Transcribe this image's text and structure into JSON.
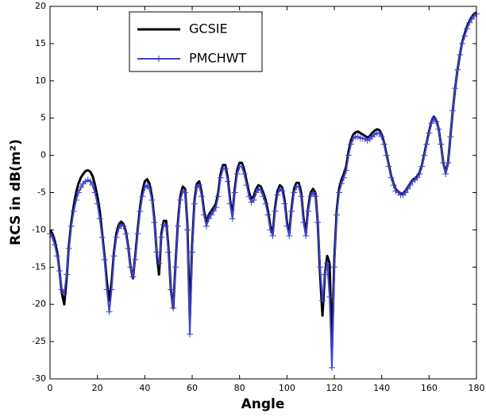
{
  "chart_data": {
    "type": "line",
    "x_label": "Angle",
    "y_label": "RCS in dB(m²)",
    "x": [
      0,
      1,
      2,
      3,
      4,
      5,
      6,
      7,
      8,
      9,
      10,
      11,
      12,
      13,
      14,
      15,
      16,
      17,
      18,
      19,
      20,
      21,
      22,
      23,
      24,
      25,
      26,
      27,
      28,
      29,
      30,
      31,
      32,
      33,
      34,
      35,
      36,
      37,
      38,
      39,
      40,
      41,
      42,
      43,
      44,
      45,
      46,
      47,
      48,
      49,
      50,
      51,
      52,
      53,
      54,
      55,
      56,
      57,
      58,
      59,
      60,
      61,
      62,
      63,
      64,
      65,
      66,
      67,
      68,
      69,
      70,
      71,
      72,
      73,
      74,
      75,
      76,
      77,
      78,
      79,
      80,
      81,
      82,
      83,
      84,
      85,
      86,
      87,
      88,
      89,
      90,
      91,
      92,
      93,
      94,
      95,
      96,
      97,
      98,
      99,
      100,
      101,
      102,
      103,
      104,
      105,
      106,
      107,
      108,
      109,
      110,
      111,
      112,
      113,
      114,
      115,
      116,
      117,
      118,
      119,
      120,
      121,
      122,
      123,
      124,
      125,
      126,
      127,
      128,
      129,
      130,
      131,
      132,
      133,
      134,
      135,
      136,
      137,
      138,
      139,
      140,
      141,
      142,
      143,
      144,
      145,
      146,
      147,
      148,
      149,
      150,
      151,
      152,
      153,
      154,
      155,
      156,
      157,
      158,
      159,
      160,
      161,
      162,
      163,
      164,
      165,
      166,
      167,
      168,
      169,
      170,
      171,
      172,
      173,
      174,
      175,
      176,
      177,
      178,
      179,
      180
    ],
    "series": [
      {
        "name": "GCSIE",
        "color": "#000000",
        "marker": "none",
        "values": [
          -10,
          -10.5,
          -11.5,
          -13,
          -15.5,
          -18.5,
          -20,
          -16.5,
          -12,
          -9,
          -6.8,
          -5,
          -3.8,
          -3,
          -2.5,
          -2.1,
          -2,
          -2.2,
          -2.8,
          -4,
          -5.5,
          -7.5,
          -10.5,
          -13.5,
          -17,
          -19.5,
          -17,
          -13,
          -10.5,
          -9.3,
          -8.9,
          -9.2,
          -10.2,
          -12.3,
          -15,
          -16.5,
          -13.5,
          -10,
          -7,
          -4.8,
          -3.5,
          -3.2,
          -3.8,
          -5.5,
          -8.5,
          -13,
          -16,
          -10.5,
          -8.8,
          -8.8,
          -12.5,
          -18,
          -20.5,
          -14.5,
          -9,
          -5.5,
          -4.2,
          -4.5,
          -9.5,
          -22,
          -12,
          -6,
          -3.8,
          -3.5,
          -5,
          -7.5,
          -9,
          -8,
          -7.5,
          -7,
          -6.5,
          -5,
          -2.5,
          -1.3,
          -1.3,
          -3,
          -6,
          -8,
          -4.5,
          -2,
          -1,
          -1,
          -2,
          -3.5,
          -5,
          -5.8,
          -5.5,
          -4.5,
          -4,
          -4.2,
          -5,
          -6,
          -7.5,
          -9.5,
          -10.5,
          -7,
          -4.8,
          -4,
          -4.3,
          -6,
          -9,
          -10.5,
          -7,
          -4.5,
          -3.7,
          -3.7,
          -5,
          -8.5,
          -10.5,
          -7,
          -5,
          -4.5,
          -5,
          -9,
          -16,
          -21.5,
          -16,
          -13.5,
          -14.5,
          -26,
          -14,
          -7.5,
          -4.5,
          -3.3,
          -2.5,
          -1.5,
          0.5,
          2,
          2.8,
          3.1,
          3.2,
          3,
          2.8,
          2.6,
          2.4,
          2.6,
          3,
          3.3,
          3.5,
          3.4,
          2.8,
          1.7,
          0.2,
          -1.3,
          -2.8,
          -3.8,
          -4.6,
          -4.9,
          -5.1,
          -5.1,
          -4.8,
          -4.3,
          -3.8,
          -3.3,
          -3.1,
          -2.8,
          -2.3,
          -1.3,
          0.2,
          1.7,
          3.2,
          4.5,
          5.2,
          4.7,
          3.6,
          1.5,
          -1,
          -2.3,
          -1,
          2.5,
          6,
          9,
          11.5,
          13.5,
          15.2,
          16.3,
          17.3,
          18,
          18.6,
          19,
          19.2
        ]
      },
      {
        "name": "PMCHWT",
        "color": "#4040d0",
        "marker": "+",
        "values": [
          -10.5,
          -11,
          -12,
          -13.5,
          -15.5,
          -18,
          -18.5,
          -16,
          -12.5,
          -9.5,
          -7.5,
          -6,
          -5,
          -4.3,
          -3.8,
          -3.5,
          -3.3,
          -3.5,
          -4,
          -5,
          -6.5,
          -8.5,
          -11,
          -14,
          -18,
          -21,
          -18,
          -13.5,
          -11,
          -9.8,
          -9.3,
          -9.5,
          -10.5,
          -12.5,
          -15,
          -16.3,
          -14,
          -10.5,
          -7.5,
          -5.5,
          -4.3,
          -4,
          -4.5,
          -6,
          -9,
          -13,
          -14.5,
          -11,
          -9.3,
          -9.5,
          -13,
          -18,
          -20.5,
          -15,
          -9.5,
          -6,
          -4.8,
          -5,
          -10,
          -24,
          -13,
          -6.5,
          -4.3,
          -4,
          -5.5,
          -8,
          -9.5,
          -8.5,
          -8,
          -7.5,
          -7,
          -5.5,
          -3,
          -1.8,
          -1.8,
          -3.5,
          -6.5,
          -8.5,
          -5,
          -2.5,
          -1.5,
          -1.5,
          -2.5,
          -4,
          -5.5,
          -6.3,
          -6,
          -5,
          -4.5,
          -4.7,
          -5.5,
          -6.5,
          -8,
          -10,
          -10.8,
          -7.5,
          -5.3,
          -4.5,
          -4.8,
          -6.5,
          -9.5,
          -10.8,
          -7.5,
          -5,
          -4.2,
          -4.2,
          -5.5,
          -9,
          -10.8,
          -7.5,
          -5.5,
          -5,
          -5.5,
          -9,
          -15,
          -19.5,
          -16,
          -14.5,
          -19,
          -28.5,
          -15,
          -8,
          -5,
          -3.8,
          -3,
          -2,
          0,
          1.5,
          2.3,
          2.5,
          2.5,
          2.3,
          2.3,
          2.2,
          2,
          2.2,
          2.5,
          2.8,
          3,
          3,
          2.5,
          1.5,
          0,
          -1.5,
          -3,
          -4,
          -4.8,
          -5,
          -5.3,
          -5.3,
          -5,
          -4.5,
          -4,
          -3.5,
          -3.3,
          -3,
          -2.5,
          -1.5,
          0,
          1.5,
          3,
          4.3,
          5,
          4.5,
          3.5,
          1.5,
          -1,
          -2.5,
          -1,
          2.5,
          6,
          9,
          11.5,
          13.5,
          15,
          16,
          17,
          17.8,
          18.3,
          18.7,
          19
        ]
      }
    ],
    "xlim": [
      0,
      180
    ],
    "xticks": [
      0,
      20,
      40,
      60,
      80,
      100,
      120,
      140,
      160,
      180
    ],
    "ylim": [
      -30,
      20
    ],
    "yticks": [
      -30,
      -25,
      -20,
      -15,
      -10,
      -5,
      0,
      5,
      10,
      15,
      20
    ],
    "grid": false,
    "legend": "upper left"
  }
}
